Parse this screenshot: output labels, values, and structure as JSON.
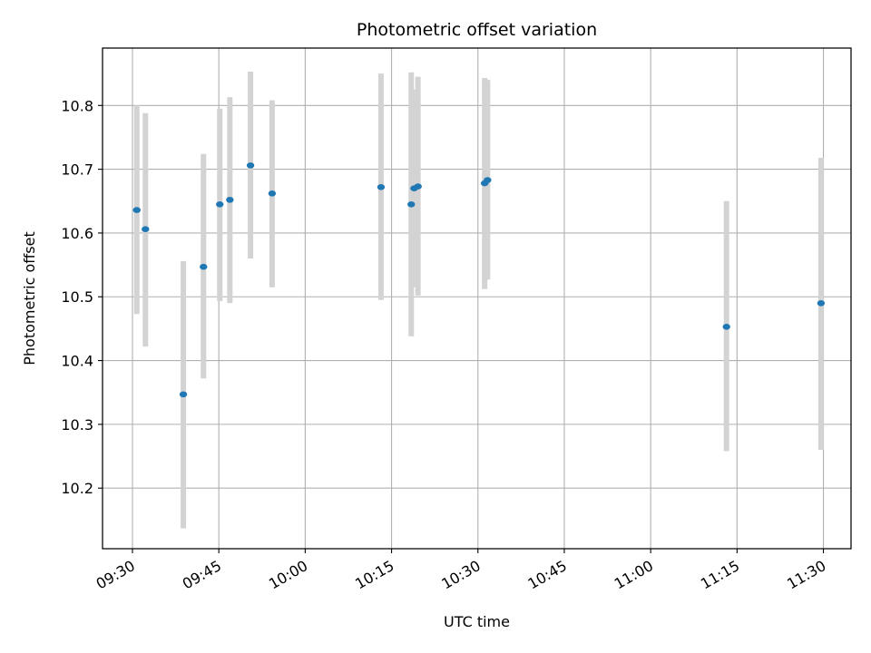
{
  "chart_data": {
    "type": "scatter",
    "title": "Photometric offset variation",
    "xlabel": "UTC time",
    "ylabel": "Photometric offset",
    "grid": true,
    "x_tick_labels": [
      "09:30",
      "09:45",
      "10:00",
      "10:15",
      "10:30",
      "10:45",
      "11:00",
      "11:15",
      "11:30"
    ],
    "x_tick_minutes": [
      570,
      585,
      600,
      615,
      630,
      645,
      660,
      675,
      690
    ],
    "xlim_minutes": [
      564.8,
      694.8
    ],
    "y_ticks": [
      10.2,
      10.3,
      10.4,
      10.5,
      10.6,
      10.7,
      10.8
    ],
    "y_tick_labels": [
      "10.2",
      "10.3",
      "10.4",
      "10.5",
      "10.6",
      "10.7",
      "10.8"
    ],
    "ylim": [
      10.105,
      10.89
    ],
    "colors": {
      "point": "#1f77b4",
      "errorbar": "#d3d3d3",
      "grid": "#b0b0b0"
    },
    "series": [
      {
        "points": [
          {
            "x": "09:30:45",
            "y": 10.636,
            "ylow": 10.473,
            "yhigh": 10.8
          },
          {
            "x": "09:32:15",
            "y": 10.606,
            "ylow": 10.422,
            "yhigh": 10.788
          },
          {
            "x": "09:38:50",
            "y": 10.347,
            "ylow": 10.137,
            "yhigh": 10.556
          },
          {
            "x": "09:42:20",
            "y": 10.547,
            "ylow": 10.372,
            "yhigh": 10.724
          },
          {
            "x": "09:45:10",
            "y": 10.645,
            "ylow": 10.493,
            "yhigh": 10.795
          },
          {
            "x": "09:46:55",
            "y": 10.652,
            "ylow": 10.49,
            "yhigh": 10.813
          },
          {
            "x": "09:50:30",
            "y": 10.706,
            "ylow": 10.56,
            "yhigh": 10.853
          },
          {
            "x": "09:54:15",
            "y": 10.662,
            "ylow": 10.515,
            "yhigh": 10.808
          },
          {
            "x": "10:13:10",
            "y": 10.672,
            "ylow": 10.495,
            "yhigh": 10.85
          },
          {
            "x": "10:18:25",
            "y": 10.645,
            "ylow": 10.438,
            "yhigh": 10.852
          },
          {
            "x": "10:18:55",
            "y": 10.67,
            "ylow": 10.515,
            "yhigh": 10.825
          },
          {
            "x": "10:19:35",
            "y": 10.673,
            "ylow": 10.502,
            "yhigh": 10.845
          },
          {
            "x": "10:31:10",
            "y": 10.678,
            "ylow": 10.512,
            "yhigh": 10.843
          },
          {
            "x": "10:31:40",
            "y": 10.683,
            "ylow": 10.527,
            "yhigh": 10.84
          },
          {
            "x": "11:13:10",
            "y": 10.453,
            "ylow": 10.258,
            "yhigh": 10.65
          },
          {
            "x": "11:29:35",
            "y": 10.49,
            "ylow": 10.26,
            "yhigh": 10.718
          }
        ]
      }
    ]
  }
}
